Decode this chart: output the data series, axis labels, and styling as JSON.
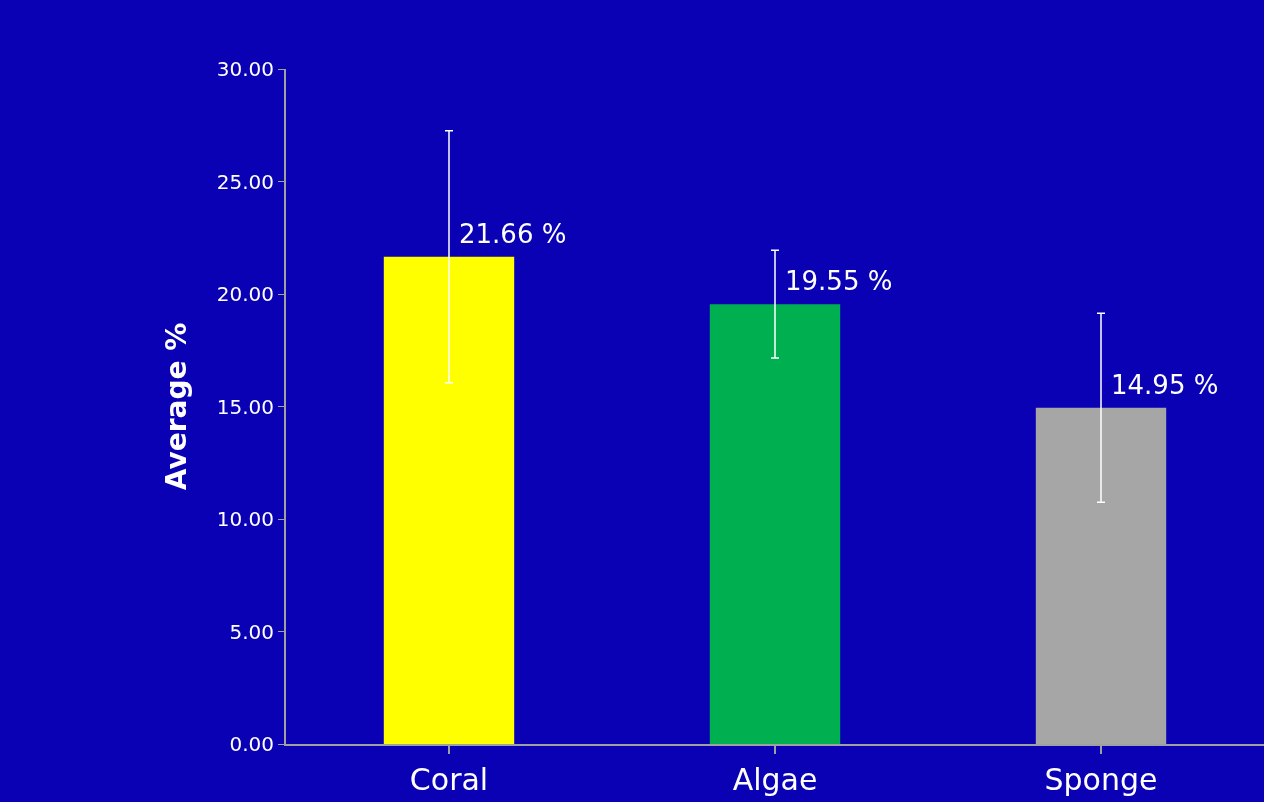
{
  "chart_data": {
    "type": "bar",
    "ylabel": "Average %",
    "categories": [
      "Coral",
      "Algae",
      "Sponge"
    ],
    "values": [
      21.66,
      19.55,
      14.95
    ],
    "colors": [
      "#ffff00",
      "#00b050",
      "#a6a6a6"
    ],
    "errors": [
      5.6,
      2.4,
      4.2
    ],
    "value_labels": [
      "21.66 %",
      "19.55 %",
      "14.95 %"
    ],
    "ylim": [
      0,
      30
    ],
    "yticks": [
      {
        "value": 0,
        "label": "0.00"
      },
      {
        "value": 5,
        "label": "5.00"
      },
      {
        "value": 10,
        "label": "10.00"
      },
      {
        "value": 15,
        "label": "15.00"
      },
      {
        "value": 20,
        "label": "20.00"
      },
      {
        "value": 25,
        "label": "25.00"
      },
      {
        "value": 30,
        "label": "30.00"
      }
    ],
    "grid": false
  }
}
